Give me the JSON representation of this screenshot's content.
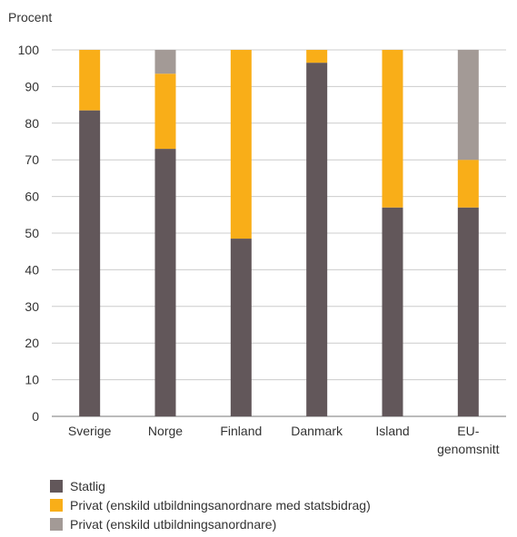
{
  "chart_data": {
    "type": "bar",
    "stacked": true,
    "ylabel": "Procent",
    "ylim": [
      0,
      100
    ],
    "yticks": [
      0,
      10,
      20,
      30,
      40,
      50,
      60,
      70,
      80,
      90,
      100
    ],
    "categories": [
      "Sverige",
      "Norge",
      "Finland",
      "Danmark",
      "Island",
      "EU-genomsnitt"
    ],
    "category_lines": [
      [
        "Sverige"
      ],
      [
        "Norge"
      ],
      [
        "Finland"
      ],
      [
        "Danmark"
      ],
      [
        "Island"
      ],
      [
        "EU-",
        "genomsnitt"
      ]
    ],
    "series": [
      {
        "name": "Statlig",
        "color": "#62575a",
        "values": [
          83.5,
          73,
          48.5,
          96.5,
          57,
          57
        ]
      },
      {
        "name": "Privat (enskild utbildningsanordnare med statsbidrag)",
        "color": "#f9ae18",
        "values": [
          16.5,
          20.5,
          51.5,
          3.5,
          43,
          13
        ]
      },
      {
        "name": "Privat (enskild utbildningsanordnare)",
        "color": "#a39a96",
        "values": [
          0,
          6.5,
          0,
          0,
          0,
          30
        ]
      }
    ],
    "grid": true,
    "legend_position": "bottom-left"
  }
}
